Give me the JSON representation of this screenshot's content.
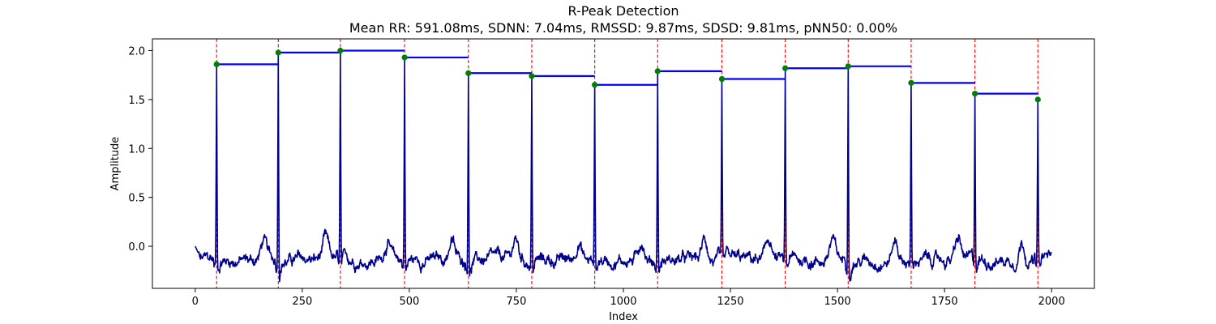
{
  "chart_data": {
    "type": "line",
    "title": "R-Peak Detection",
    "subtitle": "Mean RR: 591.08ms, SDNN: 7.04ms, RMSSD: 9.87ms, SDSD: 9.81ms, pNN50: 0.00%",
    "xlabel": "Index",
    "ylabel": "Amplitude",
    "xlim": [
      -100,
      2100
    ],
    "ylim": [
      -0.43,
      2.12
    ],
    "x_ticks": [
      0,
      250,
      500,
      750,
      1000,
      1250,
      1500,
      1750,
      2000
    ],
    "y_ticks": [
      0.0,
      0.5,
      1.0,
      1.5,
      2.0
    ],
    "grid": false,
    "legend": false,
    "colors": {
      "signal": "#00008b",
      "peak_line": "#ff0000",
      "peak_marker": "#008000",
      "level_line": "#0000ff"
    },
    "signal": {
      "samples": 2000,
      "baseline_start": 0.0
    },
    "peaks": [
      {
        "x": 50,
        "y": 1.86
      },
      {
        "x": 194,
        "y": 1.98
      },
      {
        "x": 339,
        "y": 2.0
      },
      {
        "x": 489,
        "y": 1.93
      },
      {
        "x": 638,
        "y": 1.77
      },
      {
        "x": 786,
        "y": 1.74
      },
      {
        "x": 933,
        "y": 1.65
      },
      {
        "x": 1080,
        "y": 1.79
      },
      {
        "x": 1230,
        "y": 1.71
      },
      {
        "x": 1378,
        "y": 1.82
      },
      {
        "x": 1525,
        "y": 1.84
      },
      {
        "x": 1672,
        "y": 1.67
      },
      {
        "x": 1821,
        "y": 1.56
      },
      {
        "x": 1968,
        "y": 1.5
      }
    ]
  }
}
